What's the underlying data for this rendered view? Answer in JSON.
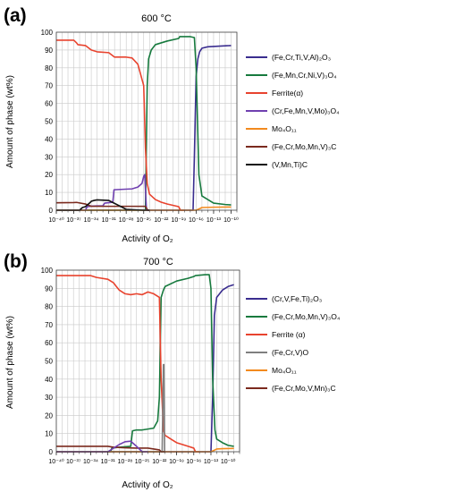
{
  "figure": {
    "panel_labels": [
      "(a)",
      "(b)"
    ]
  },
  "chart_data": [
    {
      "type": "line",
      "panel": "(a)",
      "title": "600 °C",
      "xlabel": "Activity of O₂",
      "ylabel": "Amount of phase (wt%)",
      "x_scale": "log",
      "xlim": [
        1e-40,
        1e-09
      ],
      "ylim": [
        0,
        100
      ],
      "yticks": [
        0,
        10,
        20,
        30,
        40,
        50,
        60,
        70,
        80,
        90,
        100
      ],
      "xtick_exponents": [
        -40,
        -37,
        -34,
        -31,
        -28,
        -25,
        -22,
        -19,
        -16,
        -13,
        -10
      ],
      "grid": true,
      "legend_position": "right",
      "series": [
        {
          "name": "(Fe,Cr,Ti,V,Al)₂O₃",
          "color": "#3a2d8f",
          "x": [
            1e-40,
            3e-17,
            5e-17,
            1e-16,
            2e-16,
            4e-16,
            1e-15,
            1e-14,
            1e-12,
            1e-10
          ],
          "y": [
            0,
            0,
            30,
            75,
            85,
            89,
            91,
            91.8,
            92.2,
            92.5
          ]
        },
        {
          "name": "(Fe,Mn,Cr,Ni,V)₃O₄",
          "color": "#177a3e",
          "x": [
            1e-40,
            2e-25,
            4e-25,
            7e-25,
            2e-24,
            1e-23,
            1e-21,
            1e-19,
            1.5e-19,
            1e-17,
            5e-17,
            1e-16,
            3e-16,
            1e-15,
            1e-13,
            1e-11,
            1e-10
          ],
          "y": [
            0,
            0,
            70,
            85,
            90,
            93,
            95,
            96.5,
            97.5,
            97.5,
            97,
            80,
            20,
            8,
            4,
            3.2,
            3
          ]
        },
        {
          "name": "Ferrite(α)",
          "color": "#e8432e",
          "x": [
            1e-40,
            1e-37,
            3e-37,
            5e-37,
            1e-35,
            1e-34,
            1e-33,
            1e-31,
            4e-31,
            1e-30,
            1e-28,
            1e-27,
            1e-26,
            1e-25,
            2e-25,
            4e-25,
            1e-24,
            1e-23,
            1e-22,
            1e-21,
            1e-19,
            2e-19,
            1e-18
          ],
          "y": [
            95.5,
            95.5,
            94,
            93,
            92.5,
            90,
            89,
            88.5,
            87,
            86,
            86,
            85.5,
            82,
            70,
            35,
            15,
            9,
            6,
            4.5,
            3.5,
            2,
            0,
            0
          ]
        },
        {
          "name": "(Cr,Fe,Mn,V,Mo)₃O₄",
          "color": "#7040b0",
          "x": [
            1e-40,
            1e-35,
            2e-35,
            1e-34,
            1e-33,
            1e-32,
            2e-32,
            5e-31,
            8e-31,
            1e-27,
            1e-26,
            5e-26,
            1e-25,
            1.5e-25,
            3e-25,
            1e-24
          ],
          "y": [
            0,
            0,
            2,
            2.3,
            2.4,
            2.5,
            4,
            4.5,
            11.5,
            12,
            13,
            15,
            19,
            20,
            0,
            0
          ]
        },
        {
          "name": "Mo₄O₁₁",
          "color": "#f28a1e",
          "x": [
            1e-40,
            1e-16,
            5e-16,
            1e-15,
            1e-13,
            1e-10
          ],
          "y": [
            0,
            0,
            1,
            1.5,
            1.7,
            1.8
          ]
        },
        {
          "name": "(Fe,Cr,Mo,Mn,V)₃C",
          "color": "#7b2a1e",
          "x": [
            1e-40,
            1e-37,
            3e-37,
            1e-35,
            1e-34,
            3e-34,
            1e-32,
            1e-31,
            1e-30,
            1e-28,
            1e-26,
            2e-25,
            5e-25,
            1e-24
          ],
          "y": [
            4.2,
            4.3,
            4.4,
            3.5,
            2.2,
            2.2,
            2.2,
            2.2,
            2.2,
            2.2,
            2.2,
            2.2,
            0,
            0
          ]
        },
        {
          "name": "(V,Mn,Ti)C",
          "color": "#111111",
          "x": [
            1e-40,
            1e-36,
            3e-36,
            1e-35,
            5e-35,
            1e-34,
            3e-34,
            1e-33,
            1e-31,
            1e-28,
            1e-25,
            1e-24
          ],
          "y": [
            0,
            0,
            1.5,
            2,
            4,
            5,
            5.5,
            5.8,
            5.5,
            0.5,
            0,
            0
          ]
        }
      ]
    },
    {
      "type": "line",
      "panel": "(b)",
      "title": "700 °C",
      "xlabel": "Activity of O₂",
      "ylabel": "Amount of phase (wt%)",
      "x_scale": "log",
      "xlim": [
        1e-40,
        1e-08
      ],
      "ylim": [
        0,
        100
      ],
      "yticks": [
        0,
        10,
        20,
        30,
        40,
        50,
        60,
        70,
        80,
        90,
        100
      ],
      "xtick_exponents": [
        -40,
        -37,
        -34,
        -31,
        -28,
        -25,
        -22,
        -19,
        -16,
        -13,
        -10
      ],
      "grid": true,
      "legend_position": "right",
      "series": [
        {
          "name": "(Cr,V,Fe,Ti)₂O₃",
          "color": "#3a2d8f",
          "x": [
            1e-40,
            1e-13,
            2e-13,
            4e-13,
            1e-12,
            1e-11,
            1e-10,
            1e-09
          ],
          "y": [
            0,
            0,
            30,
            75,
            85,
            89,
            91,
            92
          ]
        },
        {
          "name": "(Fe,Cr,Mo,Mn,V)₃O₄",
          "color": "#177a3e",
          "x": [
            1e-40,
            3e-31,
            5e-31,
            1e-29,
            1e-27,
            2e-27,
            1e-26,
            1e-25,
            1e-23,
            5e-23,
            1e-22,
            2e-22,
            5e-22,
            1e-21,
            1e-19,
            1e-17,
            1e-16,
            2e-16,
            1e-14,
            5e-14,
            1e-13,
            2e-13,
            5e-13,
            1e-12,
            1e-11,
            1e-10,
            1e-09
          ],
          "y": [
            0,
            0,
            2,
            2.5,
            3,
            11.5,
            12,
            12,
            13,
            17,
            30,
            85,
            89,
            91,
            94,
            95.5,
            96.5,
            97,
            97.5,
            97.5,
            90,
            40,
            12,
            7,
            5,
            3.5,
            3
          ]
        },
        {
          "name": "Ferrite (α)",
          "color": "#e8432e",
          "x": [
            1e-40,
            1e-34,
            1e-33,
            1e-31,
            1e-30,
            3e-30,
            1e-29,
            1e-28,
            1e-27,
            1e-26,
            1e-25,
            1e-24,
            1e-23,
            1e-22,
            2e-22,
            5e-22,
            1e-21,
            1e-20,
            1e-19,
            1e-18,
            1e-17,
            1e-16,
            2e-16,
            1e-15
          ],
          "y": [
            97,
            97,
            96,
            95,
            93,
            91,
            89,
            87,
            86.5,
            87,
            86.5,
            88,
            87,
            85,
            40,
            12,
            9,
            7,
            5,
            4,
            3,
            2,
            0,
            0
          ]
        },
        {
          "name": "(Fe,Cr,V)O",
          "color": "#7f7f7f",
          "x": [
            1e-40,
            3e-22,
            5e-22,
            6e-22,
            8e-22,
            1e-21,
            1e-40
          ],
          "y": [
            0,
            0,
            48,
            48,
            0,
            0,
            0
          ]
        },
        {
          "name": "Mo₄O₁₁",
          "color": "#f28a1e",
          "x": [
            1e-40,
            1e-13,
            5e-13,
            1e-12,
            1e-11,
            1e-09
          ],
          "y": [
            0,
            0,
            1,
            1.5,
            1.7,
            1.8
          ]
        },
        {
          "name": "(Fe,Cr,Mo,V,Mn)₃C",
          "color": "#7b2a1e",
          "x": [
            1e-40,
            1e-34,
            1e-33,
            1e-31,
            1e-30,
            1e-28,
            1e-26,
            1e-24,
            1e-23,
            1e-22,
            2e-22,
            1e-21
          ],
          "y": [
            3,
            3,
            3,
            3,
            2.5,
            2.2,
            2,
            2,
            1.5,
            1,
            0,
            0
          ]
        },
        {
          "name": "",
          "color": "#7040b0",
          "x": [
            1e-40,
            1e-31,
            1e-30,
            1e-29,
            1e-28,
            1e-27,
            1e-26,
            1e-25,
            1e-24
          ],
          "y": [
            0,
            0,
            2,
            4,
            5.5,
            5.8,
            3,
            0,
            0
          ]
        }
      ]
    }
  ]
}
